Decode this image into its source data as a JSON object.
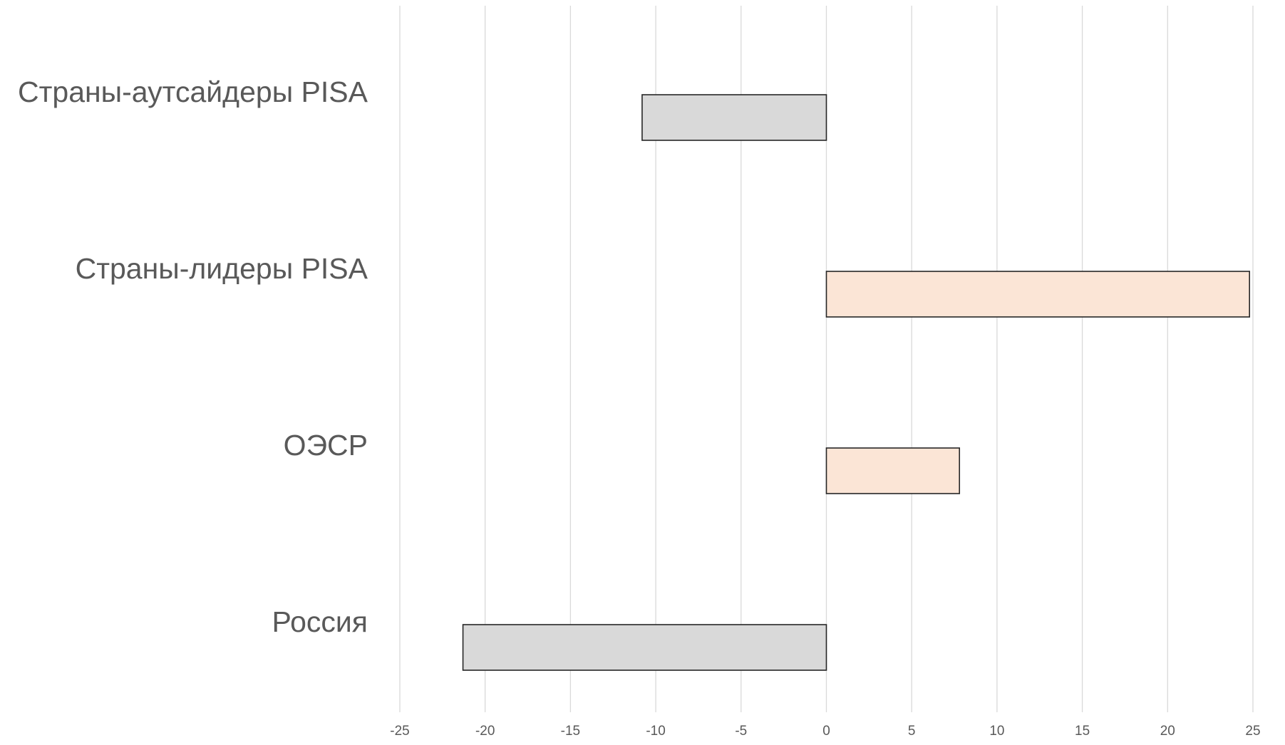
{
  "chart_data": {
    "type": "bar",
    "orientation": "horizontal",
    "categories": [
      "Страны-аутсайдеры PISA",
      "Страны-лидеры PISA",
      "ОЭСР",
      "Россия"
    ],
    "values": [
      -10.8,
      24.8,
      7.8,
      -21.3
    ],
    "title": "",
    "xlabel": "",
    "ylabel": "",
    "xlim": [
      -25,
      25
    ],
    "xticks": [
      -25,
      -20,
      -15,
      -10,
      -5,
      0,
      5,
      10,
      15,
      20,
      25
    ],
    "tick_labels": [
      "-25",
      "-20",
      "-15",
      "-10",
      "-5",
      "0",
      "5",
      "10",
      "15",
      "20",
      "25"
    ],
    "grid": "vertical",
    "legend": "none",
    "colors": {
      "negative_fill": "#d9d9d9",
      "positive_fill": "#fbe5d6",
      "bar_border": "#262626",
      "gridline": "#d9d9d9",
      "text": "#595959"
    }
  }
}
